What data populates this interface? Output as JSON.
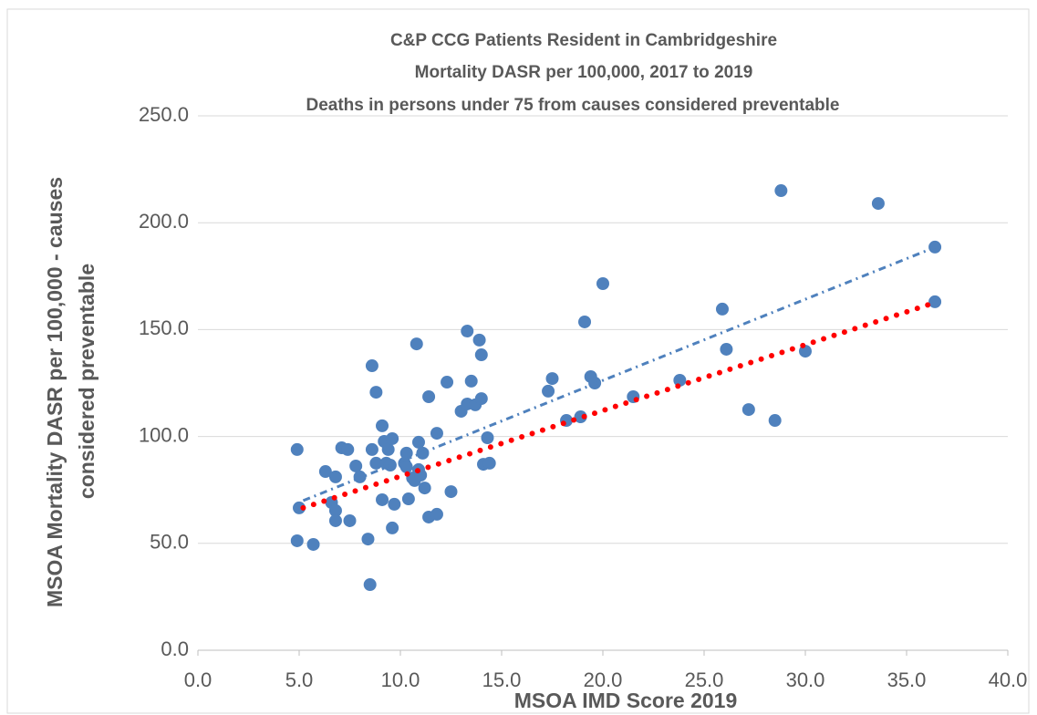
{
  "chart_data": {
    "type": "scatter",
    "title": [
      "C&P CCG Patients Resident in Cambridgeshire",
      "Mortality DASR per 100,000, 2017 to 2019",
      "Deaths in persons under 75 from causes considered preventable"
    ],
    "x_label": "MSOA IMD Score 2019",
    "y_label": [
      "MSOA Mortality DASR per 100,000  - causes",
      "considered preventable"
    ],
    "xlim": [
      0,
      40
    ],
    "ylim": [
      0,
      250
    ],
    "xticks": [
      {
        "value": 0,
        "label": "0.0"
      },
      {
        "value": 5,
        "label": "5.0"
      },
      {
        "value": 10,
        "label": "10.0"
      },
      {
        "value": 15,
        "label": "15.0"
      },
      {
        "value": 20,
        "label": "20.0"
      },
      {
        "value": 25,
        "label": "25.0"
      },
      {
        "value": 30,
        "label": "30.0"
      },
      {
        "value": 35,
        "label": "35.0"
      },
      {
        "value": 40,
        "label": "40.0"
      }
    ],
    "yticks": [
      {
        "value": 0,
        "label": "0.0"
      },
      {
        "value": 50,
        "label": "50.0"
      },
      {
        "value": 100,
        "label": "100.0"
      },
      {
        "value": 150,
        "label": "150.0"
      },
      {
        "value": 200,
        "label": "200.0"
      },
      {
        "value": 250,
        "label": "250.0"
      }
    ],
    "grid": true,
    "series": [
      {
        "color": "#4f81bd",
        "x": [
          4.9,
          4.9,
          5.0,
          5.7,
          6.3,
          6.6,
          6.8,
          6.8,
          6.8,
          7.1,
          7.4,
          7.5,
          7.8,
          8.0,
          8.4,
          8.5,
          8.6,
          8.6,
          8.8,
          8.8,
          9.1,
          9.1,
          9.2,
          9.3,
          9.4,
          9.5,
          9.6,
          9.6,
          9.7,
          10.2,
          10.3,
          10.3,
          10.4,
          10.6,
          10.7,
          10.8,
          10.9,
          10.9,
          11.0,
          11.1,
          11.2,
          11.4,
          11.4,
          11.8,
          11.8,
          12.3,
          12.5,
          13.0,
          13.3,
          13.3,
          13.5,
          13.7,
          13.9,
          14.0,
          14.0,
          14.1,
          14.3,
          14.4,
          17.3,
          17.5,
          18.2,
          18.9,
          19.1,
          19.4,
          19.6,
          20.0,
          21.5,
          23.8,
          25.9,
          26.1,
          27.2,
          28.5,
          28.8,
          30.0,
          33.6,
          36.4,
          36.4
        ],
        "values": [
          93.9,
          51.2,
          66.6,
          49.5,
          83.6,
          69.1,
          81.1,
          65.3,
          60.6,
          94.7,
          93.9,
          60.6,
          86.2,
          81.1,
          52.0,
          30.7,
          133.1,
          93.9,
          120.7,
          87.5,
          70.4,
          105.0,
          97.7,
          87.5,
          93.9,
          86.6,
          99.0,
          57.2,
          68.3,
          87.5,
          92.2,
          85.8,
          70.8,
          80.6,
          79.4,
          143.3,
          97.3,
          84.5,
          81.9,
          92.2,
          75.9,
          118.6,
          62.3,
          101.5,
          63.6,
          125.4,
          74.2,
          111.8,
          149.3,
          115.2,
          125.9,
          114.8,
          145.1,
          117.7,
          138.2,
          87.0,
          99.4,
          87.5,
          121.2,
          127.1,
          107.5,
          109.2,
          153.6,
          128.0,
          125.0,
          171.5,
          118.6,
          126.3,
          159.6,
          140.8,
          112.6,
          107.5,
          215.0,
          139.9,
          209.0,
          188.6,
          163.0
        ]
      }
    ],
    "trendlines": [
      {
        "color": "#4f81bd",
        "style": "dashdot",
        "x": [
          5.2,
          36.4
        ],
        "values": [
          70,
          188.5
        ]
      },
      {
        "color": "#ff0000",
        "style": "dotted",
        "x": [
          5.2,
          36.4
        ],
        "values": [
          66.6,
          162.6
        ]
      }
    ]
  }
}
